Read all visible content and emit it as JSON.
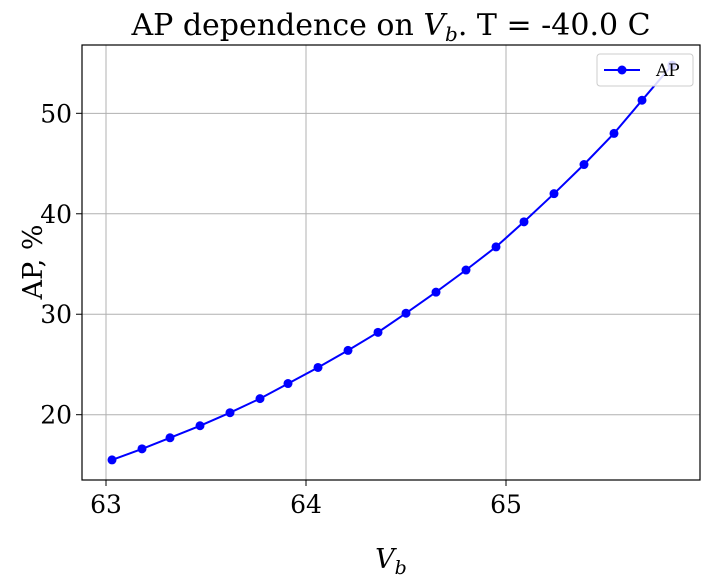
{
  "chart_data": {
    "type": "line",
    "title": "AP dependence on V_b. T = -40.0 C",
    "title_parts": {
      "prefix": "AP dependence on ",
      "var": "V",
      "var_sub": "b",
      "suffix": ". T = -40.0 C"
    },
    "xlabel": {
      "var": "V",
      "sub": "b"
    },
    "ylabel": "AP, %",
    "xlim": [
      62.88,
      65.97
    ],
    "ylim": [
      13.5,
      56.8
    ],
    "xticks": [
      63,
      64,
      65
    ],
    "yticks": [
      20,
      30,
      40,
      50
    ],
    "grid": true,
    "legend_position": "top-right",
    "series": [
      {
        "name": "AP",
        "color": "#0000ff",
        "marker": "circle",
        "x": [
          63.03,
          63.18,
          63.32,
          63.47,
          63.62,
          63.77,
          63.91,
          64.06,
          64.21,
          64.36,
          64.5,
          64.65,
          64.8,
          64.95,
          65.09,
          65.24,
          65.39,
          65.54,
          65.68,
          65.83
        ],
        "y": [
          15.5,
          16.6,
          17.7,
          18.9,
          20.2,
          21.6,
          23.1,
          24.7,
          26.4,
          28.2,
          30.1,
          32.2,
          34.4,
          36.7,
          39.2,
          42.0,
          44.9,
          48.0,
          51.3,
          54.8
        ]
      }
    ]
  }
}
